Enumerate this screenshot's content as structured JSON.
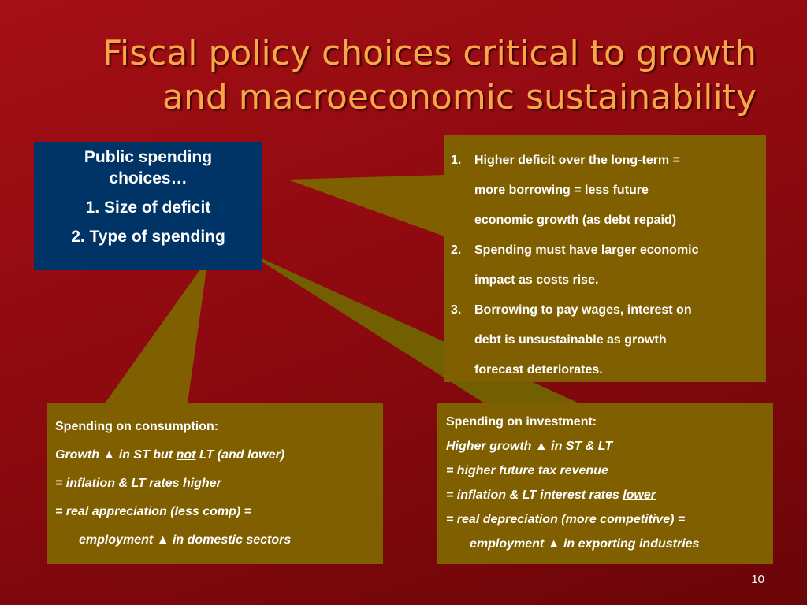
{
  "title": {
    "line1": "Fiscal policy choices critical to growth",
    "line2": "and macroeconomic sustainability"
  },
  "choices_box": {
    "heading_line1": "Public spending",
    "heading_line2": "choices…",
    "item1": "1. Size of deficit",
    "item2": "2. Type of spending"
  },
  "deficit_box": {
    "items": [
      {
        "num": "1.",
        "lines": [
          "Higher deficit over the long-term =",
          "more borrowing = less future",
          "economic growth (as debt repaid)"
        ]
      },
      {
        "num": "2.",
        "lines": [
          "Spending must have larger economic",
          "impact as costs rise."
        ]
      },
      {
        "num": "3.",
        "lines": [
          "Borrowing to pay wages, interest on",
          "debt is unsustainable as growth",
          "forecast deteriorates."
        ]
      }
    ]
  },
  "consumption_box": {
    "heading": "Spending on consumption:",
    "l2_a": "Growth ",
    "l2_tri": "▲",
    "l2_b": " in ST but ",
    "l2_u": "not",
    "l2_c": " LT (and lower)",
    "l3_a": "= inflation & LT rates ",
    "l3_u": "higher",
    "l4": "= real appreciation (less comp) =",
    "l5_a": "employment ",
    "l5_tri": "▲",
    "l5_b": " in domestic sectors"
  },
  "investment_box": {
    "heading": "Spending on investment:",
    "l2_a": "Higher growth ",
    "l2_tri": "▲",
    "l2_b": " in ST & LT",
    "l3": "= higher future tax revenue",
    "l4_a": "= inflation & LT interest rates ",
    "l4_u": "lower",
    "l5": "= real depreciation (more competitive) =",
    "l6_a": "employment ",
    "l6_tri": "▲",
    "l6_b": " in exporting industries"
  },
  "page_number": "10",
  "colors": {
    "background": "#8e0a10",
    "title": "#f7a64a",
    "blue_box": "#003366",
    "gold_box": "#7f5f00"
  }
}
